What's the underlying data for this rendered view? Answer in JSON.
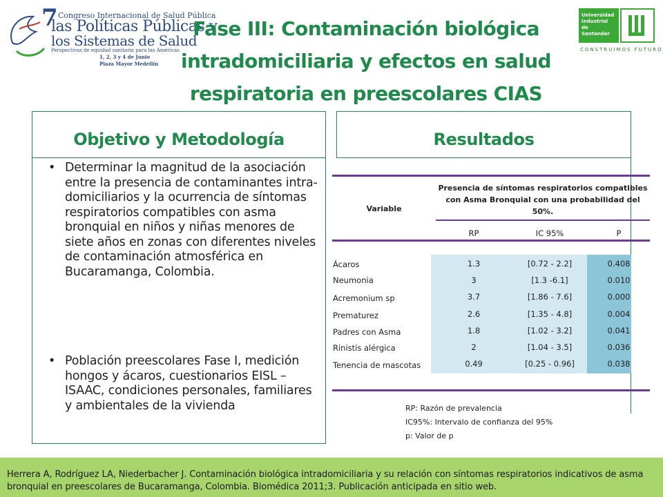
{
  "logo_left": {
    "number": "7",
    "line1": "Congreso Internacional de Salud Pública",
    "line2": "las Políticas Públicas y",
    "line3": "los Sistemas de Salud",
    "line4": "Perspectivas de equidad sanitaria para las Américas",
    "dates": "1, 2, 3 y 4 de Junio",
    "venue": "Plaza Mayor Medellín"
  },
  "logo_right": {
    "name": "Universidad Industrial de Santander",
    "tagline": "CONSTRUIMOS FUTURO",
    "brand_color": "#3aa935"
  },
  "title": "Fase III: Contaminación biológica intradomiciliaria y efectos en salud respiratoria en preescolares CIAS",
  "objective": {
    "heading": "Objetivo y Metodología",
    "bullets": [
      "Determinar la magnitud de la asociación entre la presencia de contaminantes intra-domiciliarios y la ocurrencia de  síntomas respiratorios compatibles con asma bronquial en niños y niñas menores de siete años en zonas con diferentes niveles de contaminación atmosférica en Bucaramanga, Colombia.",
      "Población preescolares Fase I, medición hongos y ácaros, cuestionarios EISL – ISAAC, condiciones personales, familiares y ambientales de la vivienda"
    ]
  },
  "results": {
    "heading": "Resultados",
    "table": {
      "variable_header": "Variable",
      "group_header": "Presencia de síntomas respiratorios compatibles con Asma Bronquial con una probabilidad del 50%.",
      "columns": [
        "RP",
        "IC 95%",
        "P"
      ],
      "rows": [
        {
          "variable": "Ácaros",
          "rp": "1.3",
          "ic": "[0.72 - 2.2]",
          "p": "0.408"
        },
        {
          "variable": "Neumonia",
          "rp": "3",
          "ic": "[1.3 -6.1]",
          "p": "0.010"
        },
        {
          "variable": "Acremonium sp",
          "rp": "3.7",
          "ic": "[1.86  - 7.6]",
          "p": "0.000"
        },
        {
          "variable": "Prematurez",
          "rp": "2.6",
          "ic": "[1.35 - 4.8]",
          "p": "0.004"
        },
        {
          "variable": "Padres con Asma",
          "rp": "1.8",
          "ic": "[1.02 - 3.2]",
          "p": "0.041"
        },
        {
          "variable": "Rinistis alérgica",
          "rp": "2",
          "ic": "[1.04 - 3.5]",
          "p": "0.036"
        },
        {
          "variable": "Tenencia de mascotas",
          "rp": "0.49",
          "ic": "[0.25 - 0.96]",
          "p": "0.038"
        }
      ]
    },
    "notes": [
      "RP: Razón de prevalencia",
      "IC95%: Intervalo de confianza del 95%",
      "p: Valor de p"
    ]
  },
  "footer": "Herrera A, Rodríguez LA, Niederbacher J. Contaminación biológica intradomiciliaria y su relación con síntomas respiratorios indicativos de asma bronquial en preescolares de Bucaramanga, Colombia. Biomédica 2011;3. Publicación anticipada  en sitio web.",
  "colors": {
    "heading_green": "#1f8a4c",
    "table_rule": "#6b3a96",
    "cell_light": "#d4e8f1",
    "cell_dark": "#8cc4d8",
    "footer_bg": "#a8d56b"
  }
}
